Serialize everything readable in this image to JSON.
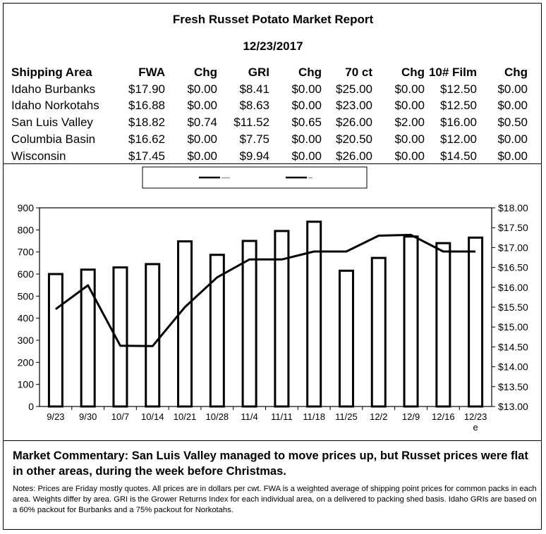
{
  "report": {
    "title": "Fresh Russet Potato Market Report",
    "date": "12/23/2017"
  },
  "table": {
    "headers": [
      "Shipping Area",
      "FWA",
      "Chg",
      "GRI",
      "Chg",
      "70 ct",
      "Chg",
      "10# Film",
      "Chg"
    ],
    "rows": [
      [
        "Idaho Burbanks",
        "$17.90",
        "$0.00",
        "$8.41",
        "$0.00",
        "$25.00",
        "$0.00",
        "$12.50",
        "$0.00"
      ],
      [
        "Idaho Norkotahs",
        "$16.88",
        "$0.00",
        "$8.63",
        "$0.00",
        "$23.00",
        "$0.00",
        "$12.50",
        "$0.00"
      ],
      [
        "San Luis Valley",
        "$18.82",
        "$0.74",
        "$11.52",
        "$0.65",
        "$26.00",
        "$2.00",
        "$16.00",
        "$0.50"
      ],
      [
        "Columbia Basin",
        "$16.62",
        "$0.00",
        "$7.75",
        "$0.00",
        "$20.50",
        "$0.00",
        "$12.00",
        "$0.00"
      ],
      [
        "Wisconsin",
        "$17.45",
        "$0.00",
        "$9.94",
        "$0.00",
        "$26.00",
        "$0.00",
        "$14.50",
        "$0.00"
      ]
    ]
  },
  "chart_data": {
    "type": "bar",
    "categories": [
      "9/23",
      "9/30",
      "10/7",
      "10/14",
      "10/21",
      "10/28",
      "11/4",
      "11/11",
      "11/18",
      "11/25",
      "12/2",
      "12/9",
      "12/16",
      "12/23"
    ],
    "category_note": {
      "index": 13,
      "text": "e"
    },
    "series": [
      {
        "type": "bar",
        "axis": "left",
        "values": [
          600,
          620,
          630,
          645,
          748,
          687,
          750,
          795,
          837,
          615,
          673,
          770,
          740,
          765
        ]
      },
      {
        "type": "line",
        "axis": "right",
        "values": [
          15.45,
          16.05,
          14.53,
          14.52,
          15.5,
          16.25,
          16.7,
          16.7,
          16.9,
          16.9,
          17.3,
          17.32,
          16.9,
          16.9
        ]
      }
    ],
    "legend": {
      "position": "top",
      "labels": [
        "----",
        "--"
      ]
    },
    "y_left": {
      "min": 0,
      "max": 900,
      "ticks": [
        "0",
        "100",
        "200",
        "300",
        "400",
        "500",
        "600",
        "700",
        "800",
        "900"
      ]
    },
    "y_right": {
      "min": 13.0,
      "max": 18.0,
      "ticks": [
        "$13.00",
        "$13.50",
        "$14.00",
        "$14.50",
        "$15.00",
        "$15.50",
        "$16.00",
        "$16.50",
        "$17.00",
        "$17.50",
        "$18.00"
      ]
    },
    "grid": false
  },
  "commentary": "Market Commentary: San Luis Valley managed to move prices up, but Russet prices were flat in other areas, during the week before Christmas.",
  "notes": "Notes: Prices are Friday mostly quotes. All prices are in dollars per cwt. FWA is a weighted average of shipping point prices for  common packs in each area. Weights differ by area. GRI is the Grower Returns Index for each individual area, on a delivered to packing shed basis. Idaho GRIs are based on a 60% packout for Burbanks and a 75% packout for Norkotahs."
}
